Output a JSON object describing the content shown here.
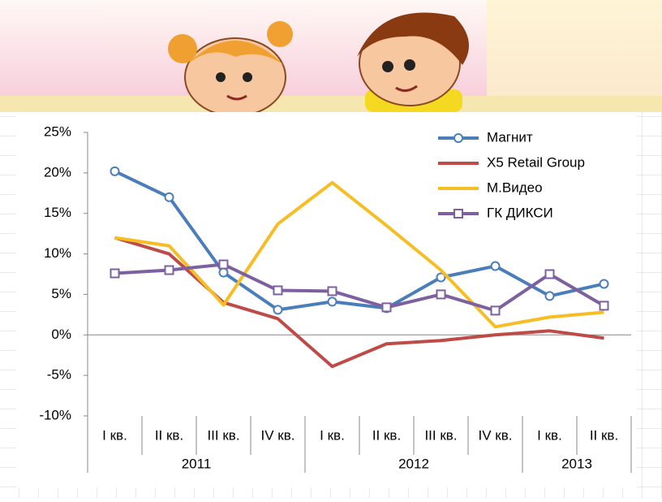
{
  "chart_data": {
    "type": "line",
    "category_groups": [
      {
        "label": "2011",
        "categories": [
          "I кв.",
          "II кв.",
          "III кв.",
          "IV кв."
        ]
      },
      {
        "label": "2012",
        "categories": [
          "I кв.",
          "II кв.",
          "III кв.",
          "IV кв."
        ]
      },
      {
        "label": "2013",
        "categories": [
          "I кв.",
          "II кв."
        ]
      }
    ],
    "series": [
      {
        "name": "Магнит",
        "color": "#4a7ebb",
        "marker": "circle",
        "values": [
          20.2,
          17,
          7.7,
          3.1,
          4.1,
          3.3,
          7.1,
          8.5,
          4.8,
          6.3
        ]
      },
      {
        "name": "X5 Retail Group",
        "color": "#be4b48",
        "values": [
          12,
          10,
          4,
          2,
          -3.9,
          -1.1,
          -0.7,
          0,
          0.5,
          -0.4
        ]
      },
      {
        "name": "М.Видео",
        "color": "#f7bd25",
        "values": [
          12,
          11,
          3.7,
          13.7,
          18.8,
          13.5,
          8,
          1,
          2.2,
          2.8
        ]
      },
      {
        "name": "ГК ДИКСИ",
        "color": "#7d60a0",
        "marker": "square",
        "values": [
          7.6,
          8,
          8.7,
          5.5,
          5.4,
          3.4,
          5,
          3,
          7.5,
          3.6
        ]
      }
    ],
    "ylim": [
      -10,
      25
    ],
    "yticks": [
      {
        "value": -10,
        "label": "-10%"
      },
      {
        "value": -5,
        "label": "-5%"
      },
      {
        "value": 0,
        "label": "0%"
      },
      {
        "value": 5,
        "label": "5%"
      },
      {
        "value": 10,
        "label": "10%"
      },
      {
        "value": 15,
        "label": "15%"
      },
      {
        "value": 20,
        "label": "20%"
      },
      {
        "value": 25,
        "label": "25%"
      }
    ],
    "legend": "top-right"
  }
}
